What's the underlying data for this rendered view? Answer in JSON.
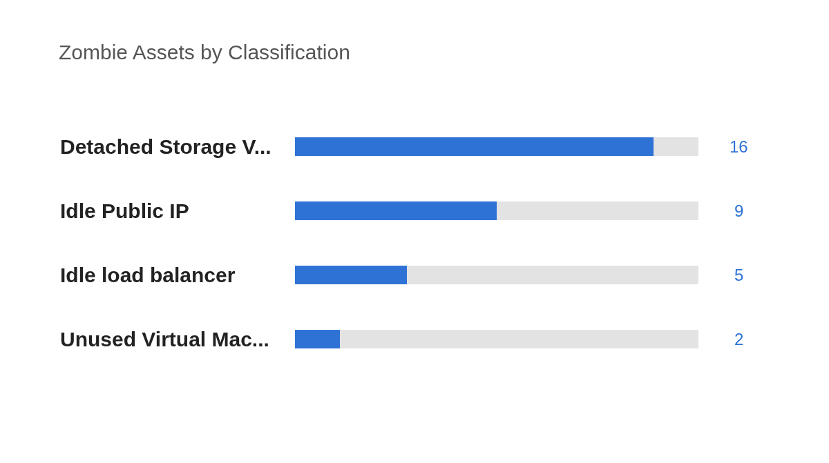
{
  "chart_data": {
    "type": "bar",
    "title": "Zombie Assets by Classification",
    "orientation": "horizontal",
    "stacked": true,
    "categories": [
      "Detached Storage V...",
      "Idle Public IP",
      "Idle load balancer",
      "Unused Virtual Mac..."
    ],
    "series": [
      {
        "color": "#2f72d6",
        "values": [
          16,
          9,
          5,
          2
        ],
        "value_labels": [
          "16",
          "9",
          "5",
          "2"
        ]
      },
      {
        "color": "#e3e3e3",
        "values": [
          2,
          9,
          13,
          16
        ]
      }
    ],
    "tick_labels": false
  }
}
